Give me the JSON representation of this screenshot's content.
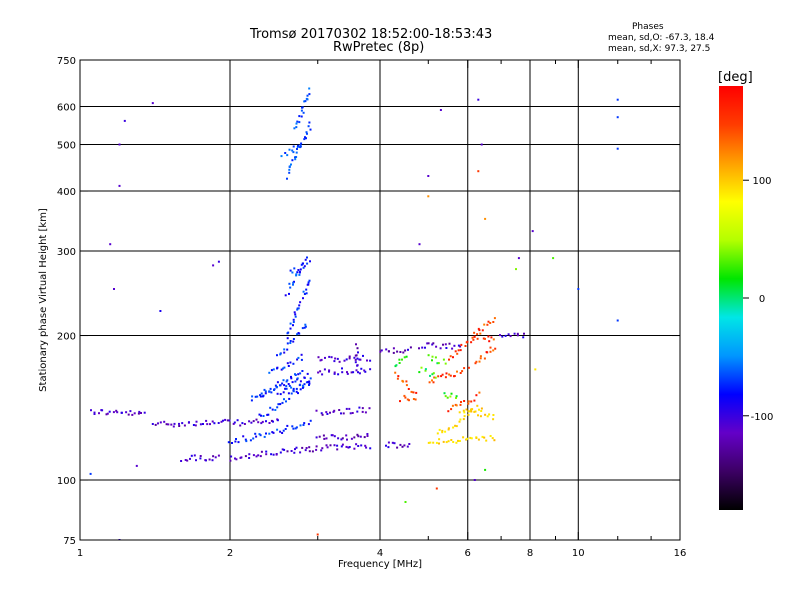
{
  "header": {
    "title_line1": "Tromsø 20170302 18:52:00-18:53:43",
    "title_line2": "RwPretec (8p)",
    "phases_title": "Phases",
    "phases_o": "mean, sd,O: -67.3, 18.4",
    "phases_x": "mean, sd,X:  97.3, 27.5"
  },
  "colorbar": {
    "label": "[deg]",
    "ticks": [
      {
        "value": 100,
        "label": "100"
      },
      {
        "value": 0,
        "label": "0"
      },
      {
        "value": -100,
        "label": "-100"
      }
    ],
    "range": [
      -180,
      180
    ],
    "colors": [
      "#000000",
      "#3c0064",
      "#6400c8",
      "#0000ff",
      "#0096ff",
      "#00e6e6",
      "#00e600",
      "#b4ff00",
      "#ffff00",
      "#ffa000",
      "#ff3c00",
      "#ff0000"
    ]
  },
  "chart_data": {
    "type": "scatter",
    "xlabel": "Frequency [MHz]",
    "ylabel": "Stationary phase Virtual Height [km]",
    "x_scale": "log",
    "y_scale": "log",
    "xlim": [
      1,
      16
    ],
    "ylim": [
      75,
      750
    ],
    "x_ticks": [
      1,
      2,
      4,
      6,
      8,
      10,
      16
    ],
    "y_ticks": [
      75,
      100,
      200,
      300,
      400,
      500,
      600,
      750
    ],
    "x_grid": [
      2,
      4,
      6,
      8,
      10
    ],
    "y_grid": [
      100,
      200,
      300,
      400,
      500,
      600
    ],
    "grid": true,
    "series": [
      {
        "segments": [
          [
            1.05,
            139,
            1.35,
            137
          ],
          [
            1.4,
            131,
            2.5,
            132
          ],
          [
            1.6,
            111,
            1.9,
            111
          ],
          [
            2.0,
            111,
            2.9,
            116
          ],
          [
            2.9,
            116,
            3.8,
            118
          ],
          [
            3.0,
            123,
            3.8,
            123
          ],
          [
            3.0,
            138,
            3.8,
            140
          ],
          [
            3.0,
            168,
            3.8,
            169
          ],
          [
            3.0,
            178,
            3.8,
            179
          ],
          [
            4.1,
            118,
            4.6,
            118
          ],
          [
            4.0,
            185,
            4.6,
            187
          ],
          [
            4.8,
            190,
            5.8,
            190
          ],
          [
            7.0,
            200,
            7.8,
            200
          ],
          [
            3.6,
            170,
            3.6,
            190
          ]
        ],
        "phase": -110,
        "spread": 20
      },
      {
        "segments": [
          [
            2.0,
            120,
            2.9,
            131
          ],
          [
            2.2,
            148,
            2.9,
            165
          ],
          [
            2.5,
            152,
            2.9,
            160
          ],
          [
            2.4,
            168,
            2.8,
            180
          ],
          [
            2.5,
            180,
            2.85,
            210
          ],
          [
            2.6,
            200,
            2.9,
            260
          ],
          [
            2.6,
            245,
            2.85,
            290
          ],
          [
            2.65,
            270,
            2.9,
            285
          ],
          [
            2.3,
            150,
            2.8,
            170
          ],
          [
            2.3,
            135,
            2.9,
            160
          ]
        ],
        "phase": -75,
        "spread": 18
      },
      {
        "segments": [
          [
            2.6,
            430,
            2.9,
            550
          ],
          [
            2.55,
            470,
            2.75,
            500
          ],
          [
            2.7,
            540,
            2.9,
            650
          ]
        ],
        "phase": -65,
        "spread": 12
      },
      {
        "segments": [
          [
            4.3,
            165,
            4.7,
            152
          ],
          [
            4.4,
            148,
            4.7,
            148
          ],
          [
            5.0,
            160,
            6.0,
            170
          ],
          [
            5.5,
            140,
            6.3,
            150
          ],
          [
            5.5,
            180,
            6.3,
            200
          ],
          [
            6.1,
            200,
            6.8,
            215
          ],
          [
            6.2,
            175,
            6.8,
            190
          ],
          [
            6.4,
            200,
            6.8,
            195
          ]
        ],
        "phase": 150,
        "spread": 25
      },
      {
        "segments": [
          [
            5.0,
            120,
            6.8,
            122
          ],
          [
            5.2,
            125,
            6.0,
            135
          ],
          [
            5.8,
            138,
            6.4,
            142
          ],
          [
            6.0,
            140,
            6.8,
            135
          ]
        ],
        "phase": 95,
        "spread": 12
      },
      {
        "segments": [
          [
            4.8,
            170,
            5.2,
            165
          ],
          [
            5.4,
            150,
            5.7,
            150
          ],
          [
            5.0,
            180,
            5.4,
            175
          ],
          [
            4.3,
            175,
            4.5,
            180
          ]
        ],
        "phase": 20,
        "spread": 25
      }
    ],
    "points": [
      {
        "x": 1.05,
        "y": 103,
        "phase": -70
      },
      {
        "x": 1.2,
        "y": 410,
        "phase": -110
      },
      {
        "x": 1.2,
        "y": 500,
        "phase": -110
      },
      {
        "x": 1.23,
        "y": 560,
        "phase": -100
      },
      {
        "x": 1.15,
        "y": 310,
        "phase": -110
      },
      {
        "x": 1.17,
        "y": 250,
        "phase": -110
      },
      {
        "x": 1.4,
        "y": 610,
        "phase": -110
      },
      {
        "x": 1.45,
        "y": 225,
        "phase": -90
      },
      {
        "x": 1.2,
        "y": 75,
        "phase": -100
      },
      {
        "x": 1.3,
        "y": 107,
        "phase": -110
      },
      {
        "x": 1.85,
        "y": 280,
        "phase": -110
      },
      {
        "x": 1.9,
        "y": 285,
        "phase": -100
      },
      {
        "x": 3.0,
        "y": 77,
        "phase": 150
      },
      {
        "x": 4.5,
        "y": 90,
        "phase": 30
      },
      {
        "x": 4.8,
        "y": 310,
        "phase": -110
      },
      {
        "x": 5.0,
        "y": 390,
        "phase": 120
      },
      {
        "x": 5.0,
        "y": 430,
        "phase": -110
      },
      {
        "x": 5.3,
        "y": 590,
        "phase": -110
      },
      {
        "x": 6.3,
        "y": 620,
        "phase": -100
      },
      {
        "x": 6.4,
        "y": 500,
        "phase": -110
      },
      {
        "x": 6.3,
        "y": 440,
        "phase": 150
      },
      {
        "x": 6.5,
        "y": 350,
        "phase": 120
      },
      {
        "x": 8.1,
        "y": 330,
        "phase": -110
      },
      {
        "x": 8.9,
        "y": 290,
        "phase": 30
      },
      {
        "x": 10.0,
        "y": 250,
        "phase": -70
      },
      {
        "x": 12.0,
        "y": 620,
        "phase": -70
      },
      {
        "x": 12.0,
        "y": 570,
        "phase": -70
      },
      {
        "x": 12.0,
        "y": 490,
        "phase": -70
      },
      {
        "x": 12.0,
        "y": 215,
        "phase": -70
      },
      {
        "x": 6.2,
        "y": 100,
        "phase": -110
      },
      {
        "x": 6.5,
        "y": 105,
        "phase": 20
      },
      {
        "x": 5.2,
        "y": 96,
        "phase": 150
      },
      {
        "x": 7.5,
        "y": 275,
        "phase": 40
      },
      {
        "x": 7.6,
        "y": 290,
        "phase": -110
      },
      {
        "x": 8.2,
        "y": 170,
        "phase": 90
      }
    ]
  }
}
